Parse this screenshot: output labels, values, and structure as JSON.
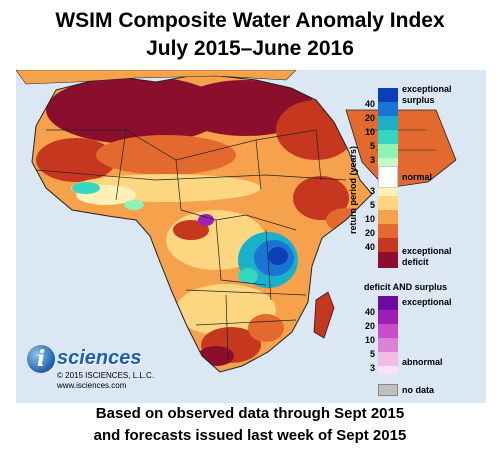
{
  "title": {
    "line1": "WSIM Composite Water Anomaly Index",
    "line2": "July 2015–June 2016"
  },
  "legend": {
    "axis_label": "return period (years)",
    "surplus_label_1": "exceptional",
    "surplus_label_2": "surplus",
    "surplus_ticks": [
      "40",
      "20",
      "10",
      "5",
      "3"
    ],
    "normal_label": "normal",
    "deficit_ticks": [
      "3",
      "5",
      "10",
      "20",
      "40"
    ],
    "deficit_label_1": "exceptional",
    "deficit_label_2": "deficit",
    "both_title": "deficit AND surplus",
    "both_top_label": "exceptional",
    "both_ticks": [
      "40",
      "20",
      "10",
      "5",
      "3"
    ],
    "both_bottom_label": "abnormal",
    "no_data_label": "no data",
    "colors": {
      "surplus": [
        "#0a3fb5",
        "#1a74d6",
        "#18b1c9",
        "#35d6bf",
        "#8ef3b7",
        "#c8f7c6"
      ],
      "normal": "#ffffff",
      "deficit": [
        "#fff0b8",
        "#fcd680",
        "#f6a24c",
        "#e26a2e",
        "#c5371f",
        "#8b0f2c"
      ],
      "both": [
        "#6a0aa0",
        "#9c1fb8",
        "#c64cc8",
        "#dc82d6",
        "#f0bde9",
        "#fbe3f7"
      ],
      "no_data": "#c0c0c0",
      "ocean": "#dbe8f4"
    }
  },
  "logo": {
    "letter": "i",
    "word": "sciences",
    "copyright": "© 2015 ISCIENCES, L.L.C.",
    "url": "www.isciences.com"
  },
  "footer": {
    "line1": "Based on observed data through Sept 2015",
    "line2": "and forecasts issued last week of Sept 2015"
  }
}
